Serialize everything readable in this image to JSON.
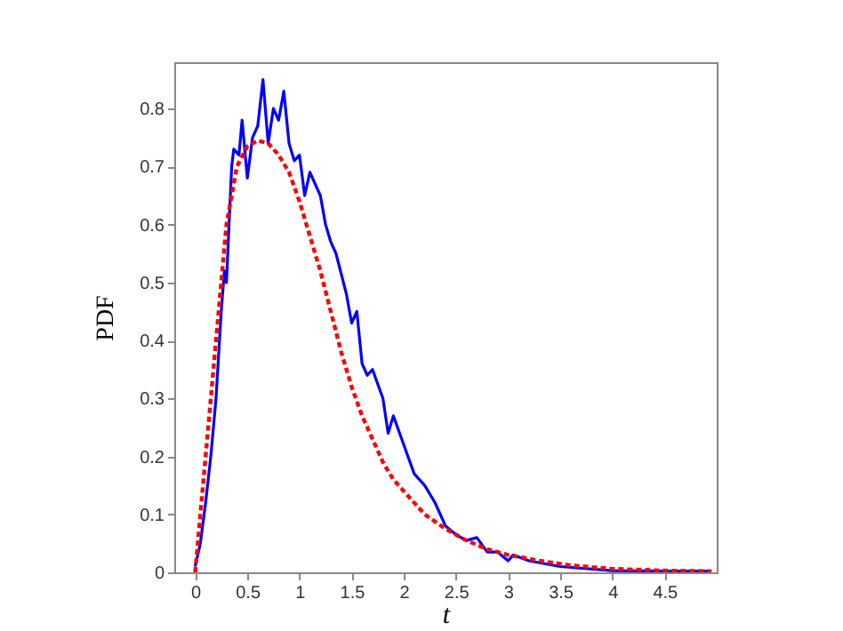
{
  "chart_data": {
    "type": "line",
    "xlabel": "t",
    "ylabel": "PDF",
    "xlim": [
      -0.2,
      5
    ],
    "ylim": [
      0,
      0.88
    ],
    "xticks": [
      0,
      0.5,
      1,
      1.5,
      2,
      2.5,
      3,
      3.5,
      4,
      4.5
    ],
    "yticks": [
      0,
      0.1,
      0.2,
      0.3,
      0.4,
      0.5,
      0.6,
      0.7,
      0.8
    ],
    "grid": false,
    "series": [
      {
        "color": "#0000ff",
        "line_style": "solid",
        "x": [
          0,
          0.05,
          0.1,
          0.15,
          0.2,
          0.25,
          0.28,
          0.3,
          0.35,
          0.37,
          0.42,
          0.45,
          0.5,
          0.55,
          0.6,
          0.65,
          0.7,
          0.75,
          0.8,
          0.85,
          0.9,
          0.95,
          1.0,
          1.05,
          1.1,
          1.2,
          1.25,
          1.3,
          1.35,
          1.45,
          1.5,
          1.55,
          1.6,
          1.65,
          1.7,
          1.8,
          1.85,
          1.9,
          2.0,
          2.1,
          2.2,
          2.3,
          2.4,
          2.5,
          2.6,
          2.7,
          2.8,
          2.9,
          3.0,
          3.05,
          3.2,
          3.5,
          4.0,
          4.5,
          4.95
        ],
        "values": [
          0.01,
          0.05,
          0.12,
          0.2,
          0.3,
          0.45,
          0.52,
          0.5,
          0.7,
          0.73,
          0.72,
          0.78,
          0.68,
          0.75,
          0.77,
          0.85,
          0.74,
          0.8,
          0.78,
          0.83,
          0.74,
          0.71,
          0.72,
          0.65,
          0.69,
          0.65,
          0.6,
          0.57,
          0.55,
          0.48,
          0.43,
          0.45,
          0.36,
          0.34,
          0.35,
          0.3,
          0.24,
          0.27,
          0.22,
          0.17,
          0.15,
          0.12,
          0.08,
          0.065,
          0.055,
          0.06,
          0.035,
          0.035,
          0.02,
          0.03,
          0.02,
          0.01,
          0.003,
          0.002,
          0.002
        ]
      },
      {
        "color": "#ff0000",
        "line_style": "dashed",
        "x": [
          0,
          0.1,
          0.2,
          0.3,
          0.4,
          0.5,
          0.6,
          0.7,
          0.8,
          0.9,
          1.0,
          1.1,
          1.2,
          1.3,
          1.4,
          1.5,
          1.6,
          1.7,
          1.8,
          1.9,
          2.0,
          2.2,
          2.4,
          2.6,
          2.8,
          3.0,
          3.3,
          3.6,
          4.0,
          4.5,
          4.95
        ],
        "values": [
          0,
          0.2,
          0.4,
          0.6,
          0.7,
          0.735,
          0.745,
          0.74,
          0.72,
          0.69,
          0.64,
          0.58,
          0.52,
          0.45,
          0.38,
          0.32,
          0.27,
          0.23,
          0.19,
          0.16,
          0.14,
          0.1,
          0.075,
          0.055,
          0.04,
          0.03,
          0.02,
          0.012,
          0.006,
          0.003,
          0.002
        ]
      }
    ]
  }
}
